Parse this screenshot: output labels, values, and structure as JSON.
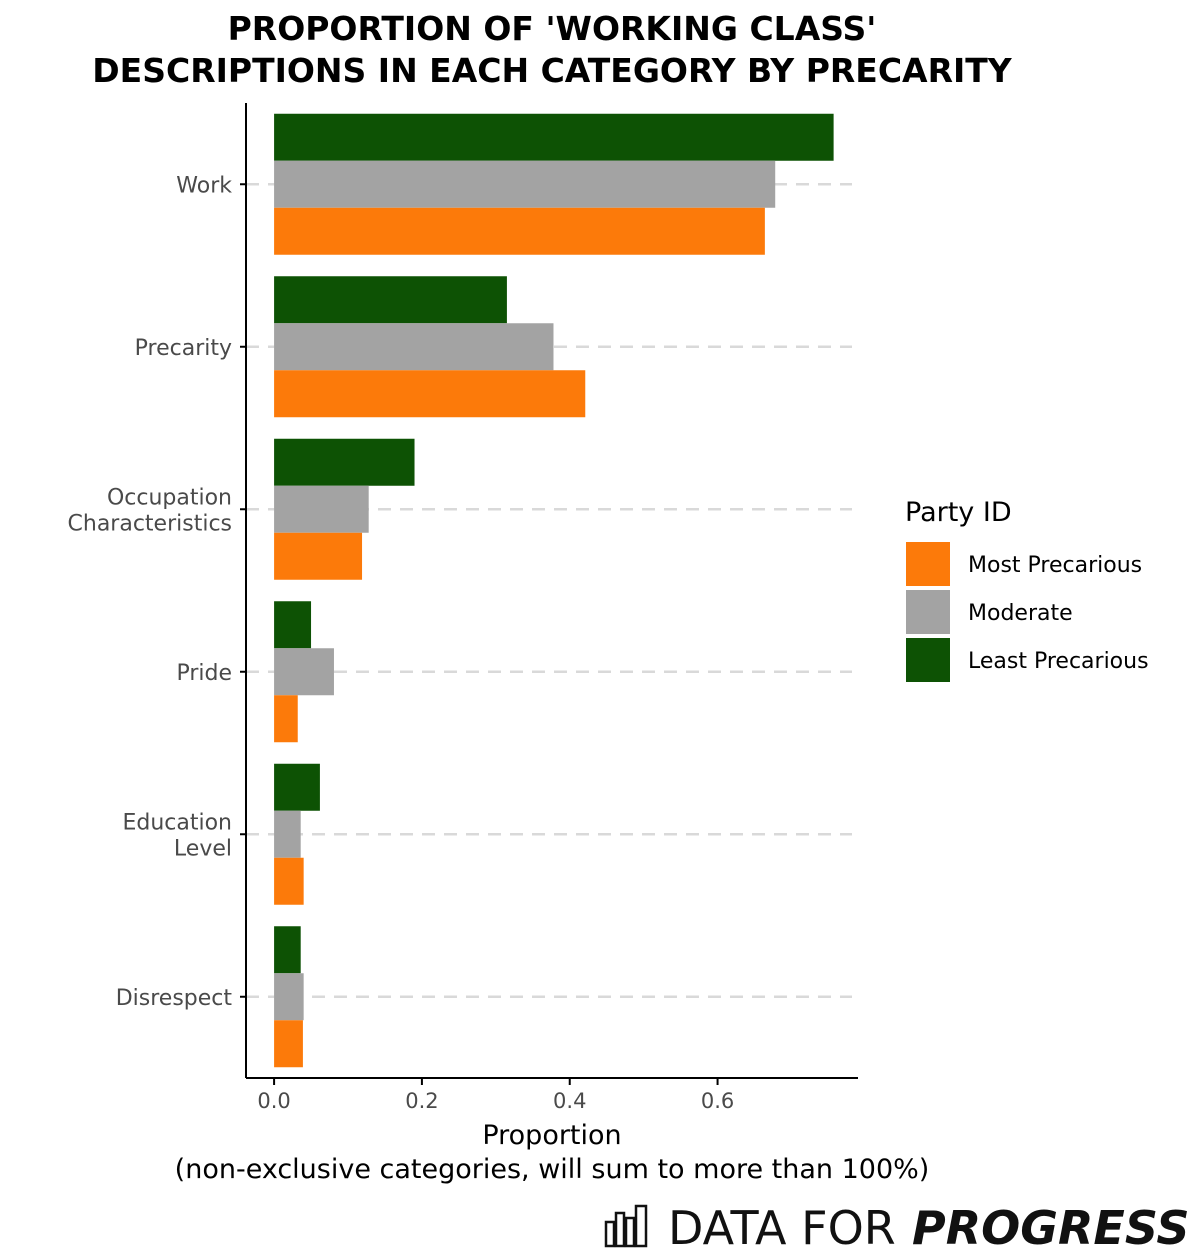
{
  "chart_data": {
    "type": "bar",
    "orientation": "horizontal",
    "title": [
      "PROPORTION OF 'WORKING CLASS'",
      "DESCRIPTIONS IN EACH CATEGORY BY PRECARITY"
    ],
    "categories": [
      "Work",
      "Precarity",
      "Occupation\nCharacteristics",
      "Pride",
      "Education\nLevel",
      "Disrespect"
    ],
    "series": [
      {
        "name": "Least Precarious",
        "color": "#0d5204",
        "values": [
          0.757,
          0.315,
          0.19,
          0.05,
          0.062,
          0.036
        ]
      },
      {
        "name": "Moderate",
        "color": "#a3a3a3",
        "values": [
          0.678,
          0.378,
          0.128,
          0.081,
          0.036,
          0.04
        ]
      },
      {
        "name": "Most Precarious",
        "color": "#fc7a0a",
        "values": [
          0.664,
          0.421,
          0.119,
          0.032,
          0.04,
          0.039
        ]
      }
    ],
    "xlabel": "Proportion",
    "xlabel_sub": "(non-exclusive categories, will sum to more than 100%)",
    "xlim": [
      -0.038,
      0.79
    ],
    "xticks": [
      0.0,
      0.2,
      0.4,
      0.6
    ],
    "xtick_labels": [
      "0.0",
      "0.2",
      "0.4",
      "0.6"
    ],
    "grid": "dashed-horizontal",
    "legend": {
      "title": "Party ID",
      "position": "right",
      "entries": [
        {
          "label": "Most Precarious",
          "color": "#fc7a0a"
        },
        {
          "label": "Moderate",
          "color": "#a3a3a3"
        },
        {
          "label": "Least Precarious",
          "color": "#0d5204"
        }
      ]
    }
  },
  "branding": {
    "logo_icon": "bar-chart-logo-icon",
    "name_light": "DATA FOR",
    "name_bold": "PROGRESS"
  }
}
